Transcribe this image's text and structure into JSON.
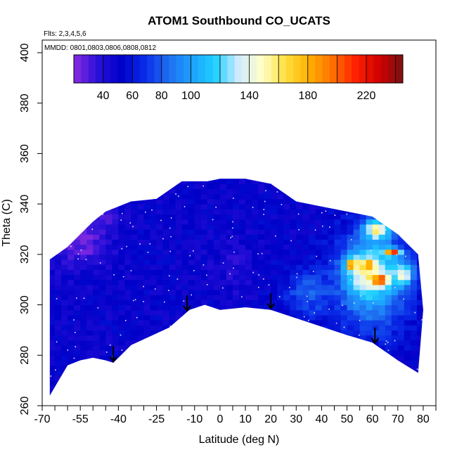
{
  "chart_data": {
    "type": "heatmap",
    "title": "ATOM1 Southbound CO_UCATS",
    "annotation_flights": "Flts: 2,3,4,5,6",
    "annotation_dates": "MMDD: 0801,0803,0806,0808,0812",
    "xlabel": "Latitude (deg N)",
    "ylabel": "Theta (C)",
    "xlim": [
      -70,
      85
    ],
    "ylim": [
      260,
      405
    ],
    "x_tick_labels": [
      -70,
      -55,
      -40,
      -25,
      -10,
      0,
      10,
      20,
      30,
      40,
      50,
      60,
      70,
      80
    ],
    "y_tick_labels": [
      260,
      280,
      300,
      320,
      340,
      360,
      380,
      400
    ],
    "colorbar": {
      "range": [
        20,
        245
      ],
      "tick_labels": [
        40,
        60,
        80,
        100,
        140,
        180,
        220
      ],
      "colors": [
        "#8a2be2",
        "#2a10d8",
        "#0000c8",
        "#0a2be8",
        "#1e6cf0",
        "#1ea0ff",
        "#1ed0ff",
        "#cfeaff",
        "#ffffc8",
        "#ffe040",
        "#ffb000",
        "#ff7000",
        "#ff2000",
        "#d00000",
        "#7a1010"
      ]
    },
    "terrain_floor": [
      {
        "x": -67,
        "y": 264
      },
      {
        "x": -60,
        "y": 276
      },
      {
        "x": -55,
        "y": 278
      },
      {
        "x": -50,
        "y": 279
      },
      {
        "x": -45,
        "y": 278
      },
      {
        "x": -42,
        "y": 277
      },
      {
        "x": -35,
        "y": 284
      },
      {
        "x": -20,
        "y": 291
      },
      {
        "x": -12,
        "y": 298
      },
      {
        "x": -6,
        "y": 300
      },
      {
        "x": 0,
        "y": 298
      },
      {
        "x": 10,
        "y": 299
      },
      {
        "x": 20,
        "y": 298
      },
      {
        "x": 35,
        "y": 293
      },
      {
        "x": 50,
        "y": 288
      },
      {
        "x": 60,
        "y": 285
      },
      {
        "x": 70,
        "y": 278
      },
      {
        "x": 78,
        "y": 273
      }
    ],
    "data_top": [
      {
        "x": -67,
        "y": 318
      },
      {
        "x": -60,
        "y": 323
      },
      {
        "x": -50,
        "y": 333
      },
      {
        "x": -45,
        "y": 337
      },
      {
        "x": -35,
        "y": 341
      },
      {
        "x": -25,
        "y": 342
      },
      {
        "x": -15,
        "y": 349
      },
      {
        "x": -5,
        "y": 349
      },
      {
        "x": 0,
        "y": 350
      },
      {
        "x": 10,
        "y": 350
      },
      {
        "x": 20,
        "y": 348
      },
      {
        "x": 30,
        "y": 341
      },
      {
        "x": 40,
        "y": 339
      },
      {
        "x": 50,
        "y": 337
      },
      {
        "x": 60,
        "y": 335
      },
      {
        "x": 70,
        "y": 328
      },
      {
        "x": 78,
        "y": 320
      },
      {
        "x": 80,
        "y": 298
      }
    ],
    "arrows_latitude": [
      -42,
      -13,
      20,
      61
    ],
    "background_value": 50,
    "features": [
      {
        "x": -55,
        "y": 325,
        "value": 25,
        "spread_x": 12,
        "spread_y": 10
      },
      {
        "x": -45,
        "y": 335,
        "value": 35,
        "spread_x": 6,
        "spread_y": 5
      },
      {
        "x": 60,
        "y": 310,
        "value": 110,
        "spread_x": 14,
        "spread_y": 20
      },
      {
        "x": 58,
        "y": 313,
        "value": 150,
        "spread_x": 8,
        "spread_y": 8
      },
      {
        "x": 63,
        "y": 310,
        "value": 225,
        "spread_x": 3,
        "spread_y": 2
      },
      {
        "x": 52,
        "y": 316,
        "value": 210,
        "spread_x": 2,
        "spread_y": 2
      },
      {
        "x": 68,
        "y": 321,
        "value": 220,
        "spread_x": 3,
        "spread_y": 1.5
      },
      {
        "x": 62,
        "y": 330,
        "value": 160,
        "spread_x": 5,
        "spread_y": 4
      },
      {
        "x": 72,
        "y": 312,
        "value": 150,
        "spread_x": 4,
        "spread_y": 4
      },
      {
        "x": 58,
        "y": 316,
        "value": 200,
        "spread_x": 2,
        "spread_y": 2
      },
      {
        "x": 35,
        "y": 305,
        "value": 80,
        "spread_x": 10,
        "spread_y": 10
      },
      {
        "x": 5,
        "y": 315,
        "value": 40,
        "spread_x": 8,
        "spread_y": 10
      }
    ]
  }
}
